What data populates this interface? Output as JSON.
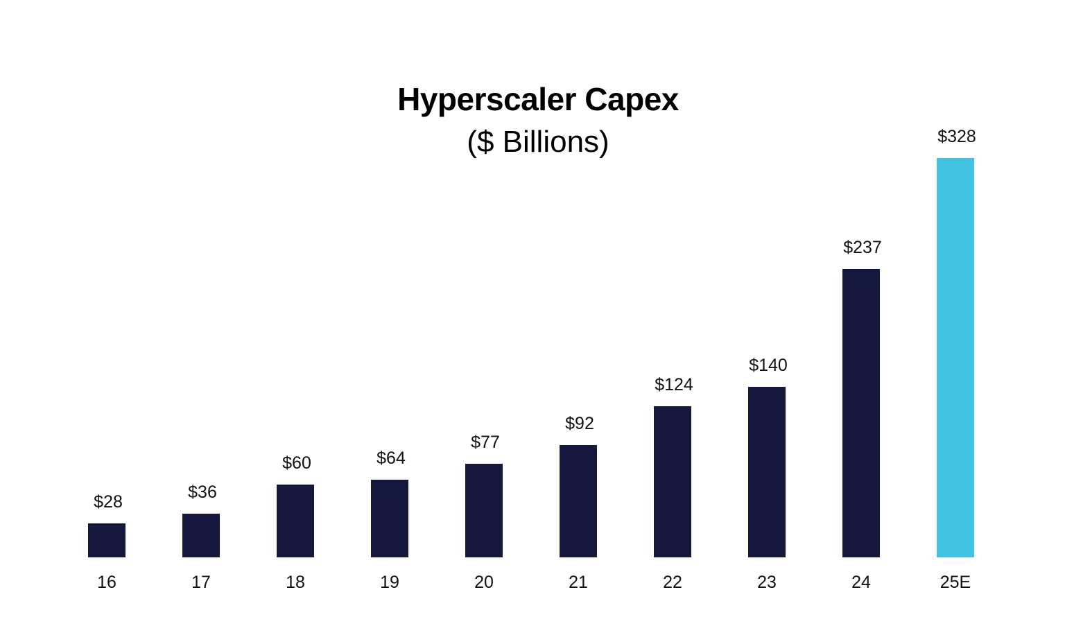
{
  "chart_data": {
    "type": "bar",
    "title": "Hyperscaler Capex",
    "subtitle": "($ Billions)",
    "xlabel": "",
    "ylabel": "",
    "ylim": [
      0,
      328
    ],
    "grid": false,
    "legend": null,
    "categories": [
      "16",
      "17",
      "18",
      "19",
      "20",
      "21",
      "22",
      "23",
      "24",
      "25E"
    ],
    "values": [
      28,
      36,
      60,
      64,
      77,
      92,
      124,
      140,
      237,
      328
    ],
    "value_labels": [
      "$28",
      "$36",
      "$60",
      "$64",
      "$77",
      "$92",
      "$124",
      "$140",
      "$237",
      "$328"
    ],
    "colors": {
      "actual": "#16173d",
      "estimate": "#41c4e2"
    },
    "estimate_categories": [
      "25E"
    ]
  }
}
